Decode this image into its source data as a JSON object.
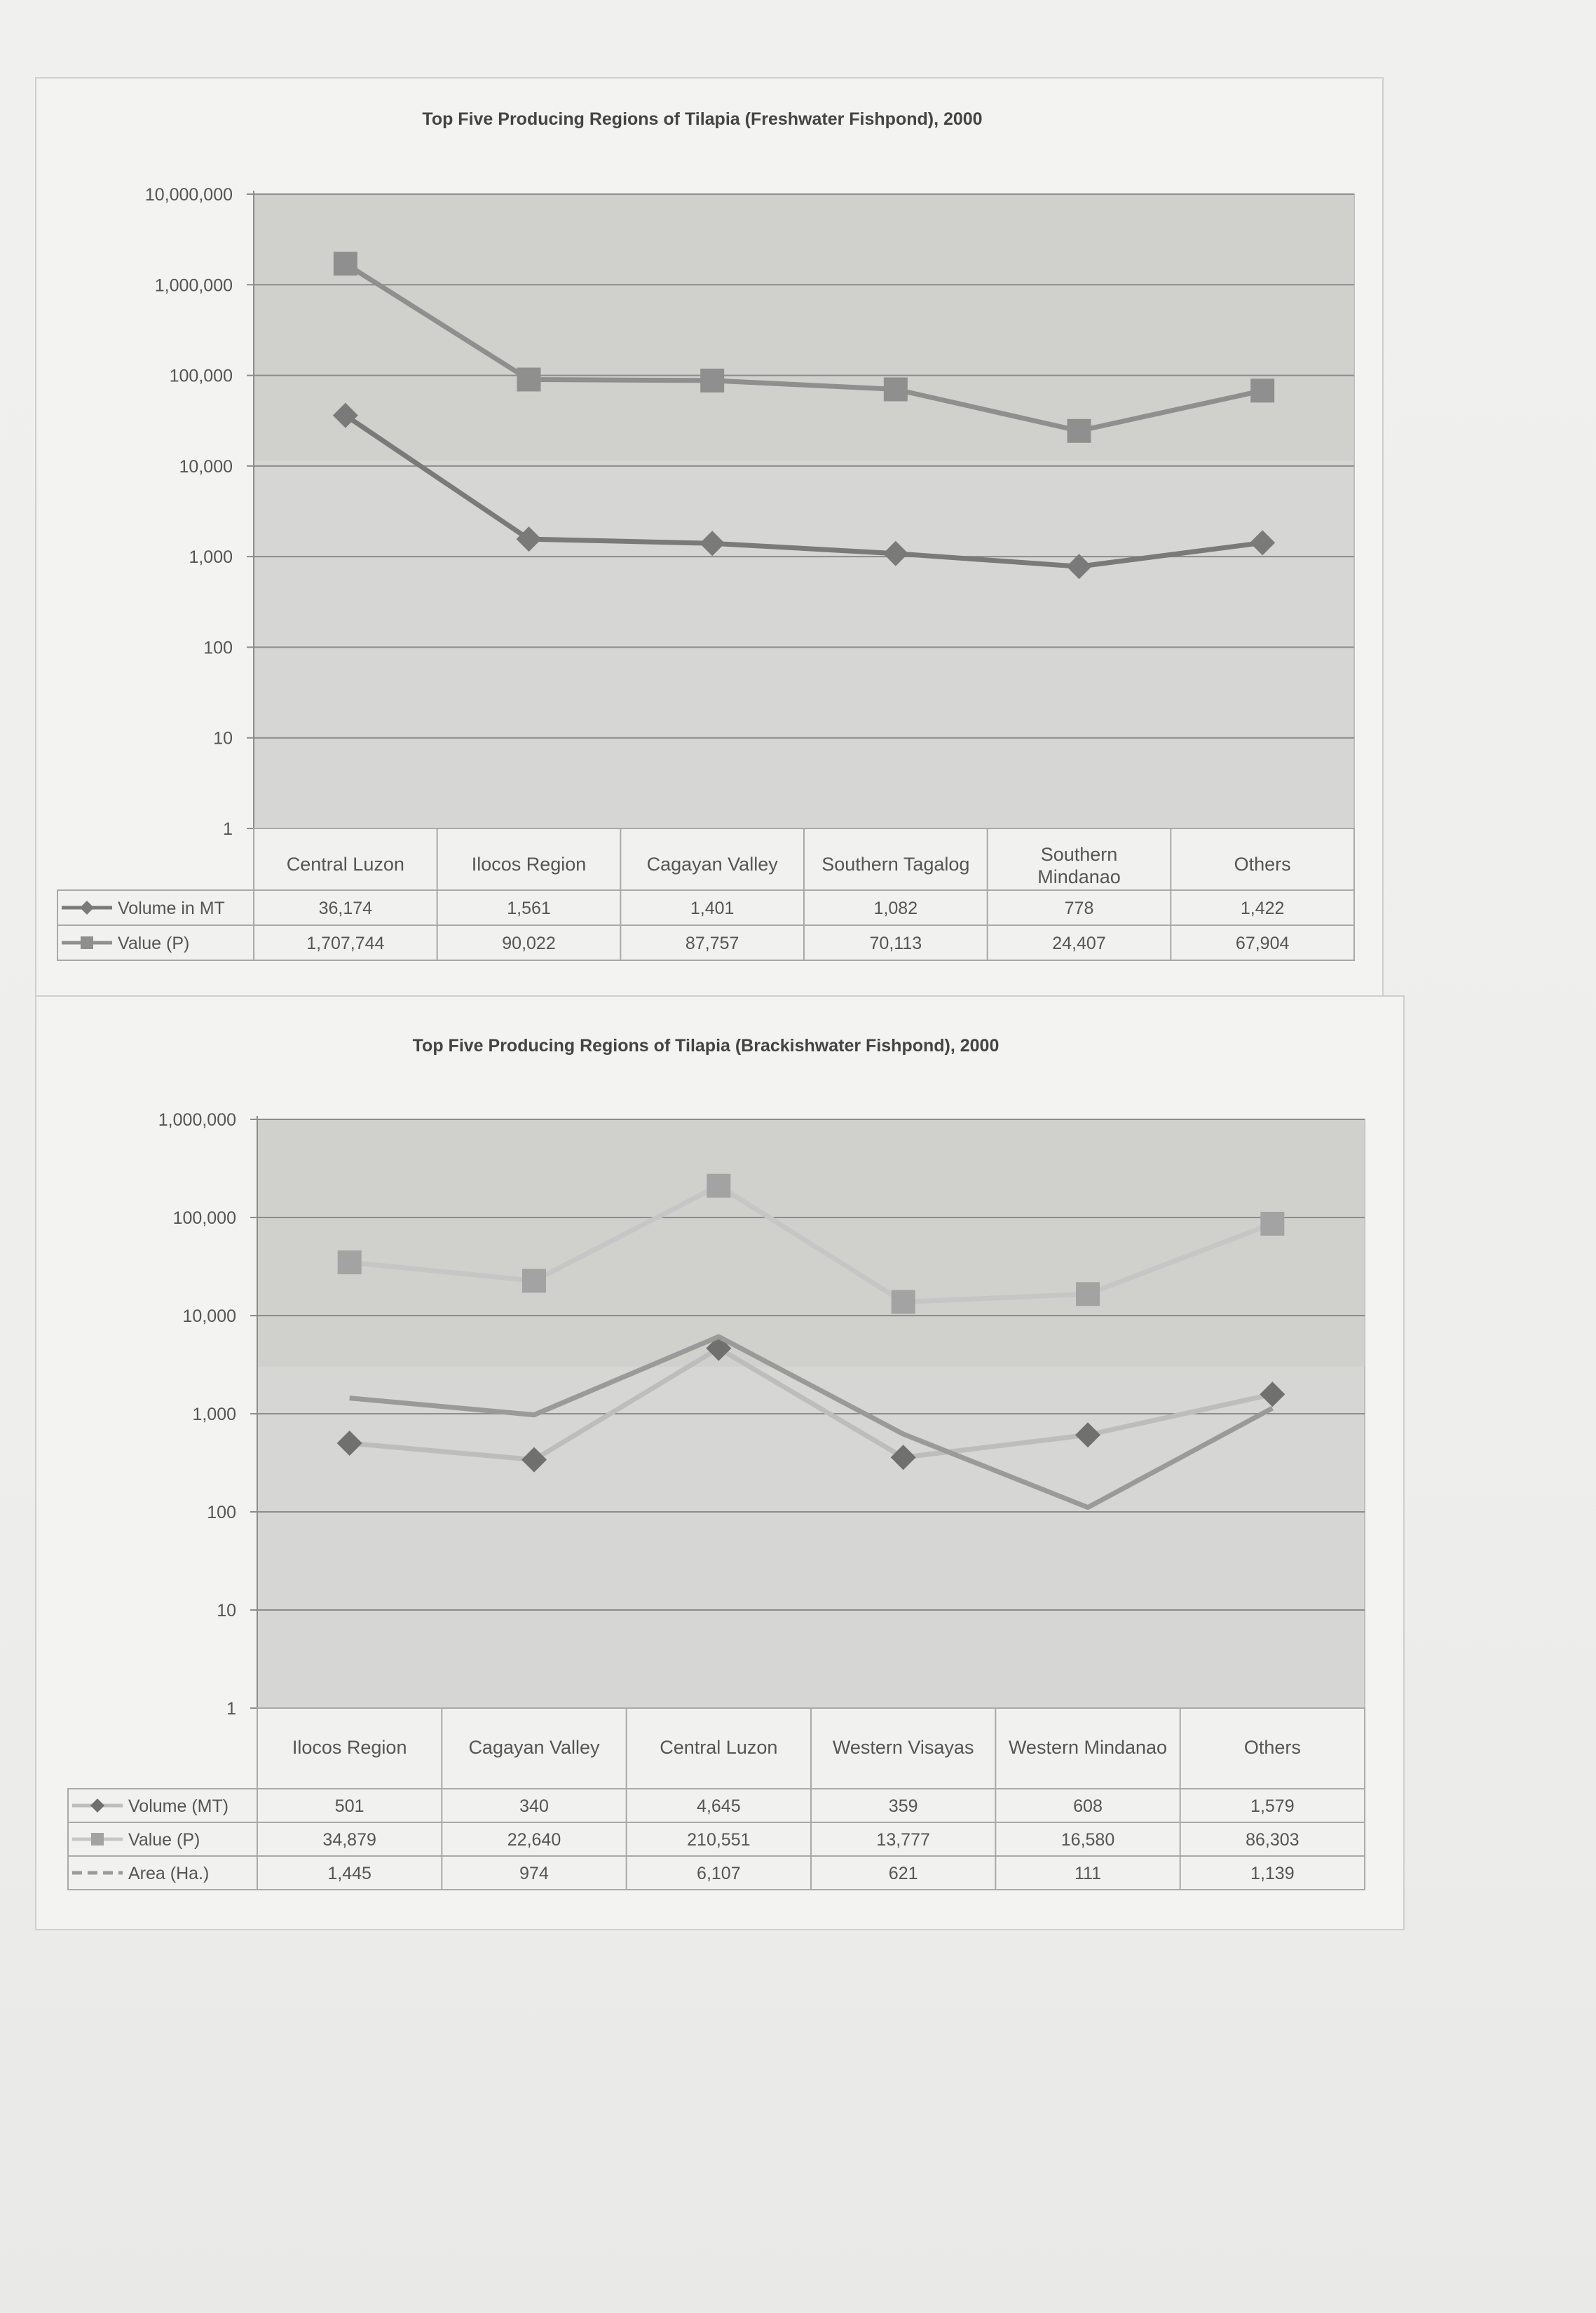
{
  "chart_data": [
    {
      "type": "line",
      "title": "Top Five Producing Regions of Tilapia (Freshwater Fishpond), 2000",
      "scale": "log",
      "ylim": [
        1,
        10000000
      ],
      "yticks": [
        "1",
        "10",
        "100",
        "1,000",
        "10,000",
        "100,000",
        "1,000,000",
        "10,000,000"
      ],
      "grid": true,
      "legend": "data table below chart",
      "categories": [
        "Central Luzon",
        "Ilocos Region",
        "Cagayan Valley",
        "Southern Tagalog",
        "Southern Mindanao",
        "Others"
      ],
      "series": [
        {
          "name": "Volume in MT",
          "marker": "diamond",
          "color": "#7a7a7a",
          "values": [
            36174,
            1561,
            1401,
            1082,
            778,
            1422
          ],
          "labels": [
            "36,174",
            "1,561",
            "1,401",
            "1,082",
            "778",
            "1,422"
          ]
        },
        {
          "name": "Value (P)",
          "marker": "square",
          "color": "#8f8f8f",
          "values": [
            1707744,
            90022,
            87757,
            70113,
            24407,
            67904
          ],
          "labels": [
            "1,707,744",
            "90,022",
            "87,757",
            "70,113",
            "24,407",
            "67,904"
          ]
        }
      ]
    },
    {
      "type": "line",
      "title": "Top Five Producing Regions of Tilapia (Brackishwater Fishpond), 2000",
      "scale": "log",
      "ylim": [
        1,
        1000000
      ],
      "yticks": [
        "1",
        "10",
        "100",
        "1,000",
        "10,000",
        "100,000",
        "1,000,000"
      ],
      "grid": true,
      "legend": "data table below chart",
      "categories": [
        "Ilocos Region",
        "Cagayan Valley",
        "Central Luzon",
        "Western Visayas",
        "Western Mindanao",
        "Others"
      ],
      "series": [
        {
          "name": "Volume (MT)",
          "marker": "diamond",
          "color": "#bdbdbd",
          "markerColor": "#707070",
          "values": [
            501,
            340,
            4645,
            359,
            608,
            1579
          ],
          "labels": [
            "501",
            "340",
            "4,645",
            "359",
            "608",
            "1,579"
          ]
        },
        {
          "name": "Value (P)",
          "marker": "square",
          "color": "#c6c6c6",
          "markerColor": "#a3a3a3",
          "values": [
            34879,
            22640,
            210551,
            13777,
            16580,
            86303
          ],
          "labels": [
            "34,879",
            "22,640",
            "210,551",
            "13,777",
            "16,580",
            "86,303"
          ]
        },
        {
          "name": "Area (Ha.)",
          "marker": "none",
          "color": "#9a9a9a",
          "values": [
            1445,
            974,
            6107,
            621,
            111,
            1139
          ],
          "labels": [
            "1,445",
            "974",
            "6,107",
            "621",
            "111",
            "1,139"
          ]
        }
      ]
    }
  ]
}
